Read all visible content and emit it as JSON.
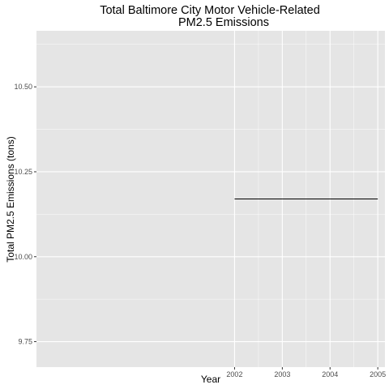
{
  "chart_data": {
    "type": "line",
    "title_lines": [
      "Total Baltimore City Motor Vehicle-Related",
      "PM2.5 Emissions"
    ],
    "xlabel": "Year",
    "ylabel": "Total PM2.5 Emissions (tons)",
    "x_ticks": [
      2002,
      2003,
      2004,
      2005
    ],
    "x_tick_labels": [
      "2002",
      "2003",
      "2004",
      "2005"
    ],
    "y_ticks": [
      9.75,
      10.0,
      10.25,
      10.5
    ],
    "y_tick_labels": [
      "9.75",
      "10.00",
      "10.25",
      "10.50"
    ],
    "xlim": [
      1997.85,
      2005.15
    ],
    "ylim": [
      9.675,
      10.665
    ],
    "grid": true,
    "colors": {
      "panel_background": "#E5E5E5",
      "grid_line": "#FFFFFF",
      "line": "#000000",
      "tick_text": "#4D4D4D",
      "title_text": "#000000"
    },
    "series": [
      {
        "x": [
          2002,
          2005
        ],
        "y": [
          10.17,
          10.17
        ]
      }
    ]
  }
}
